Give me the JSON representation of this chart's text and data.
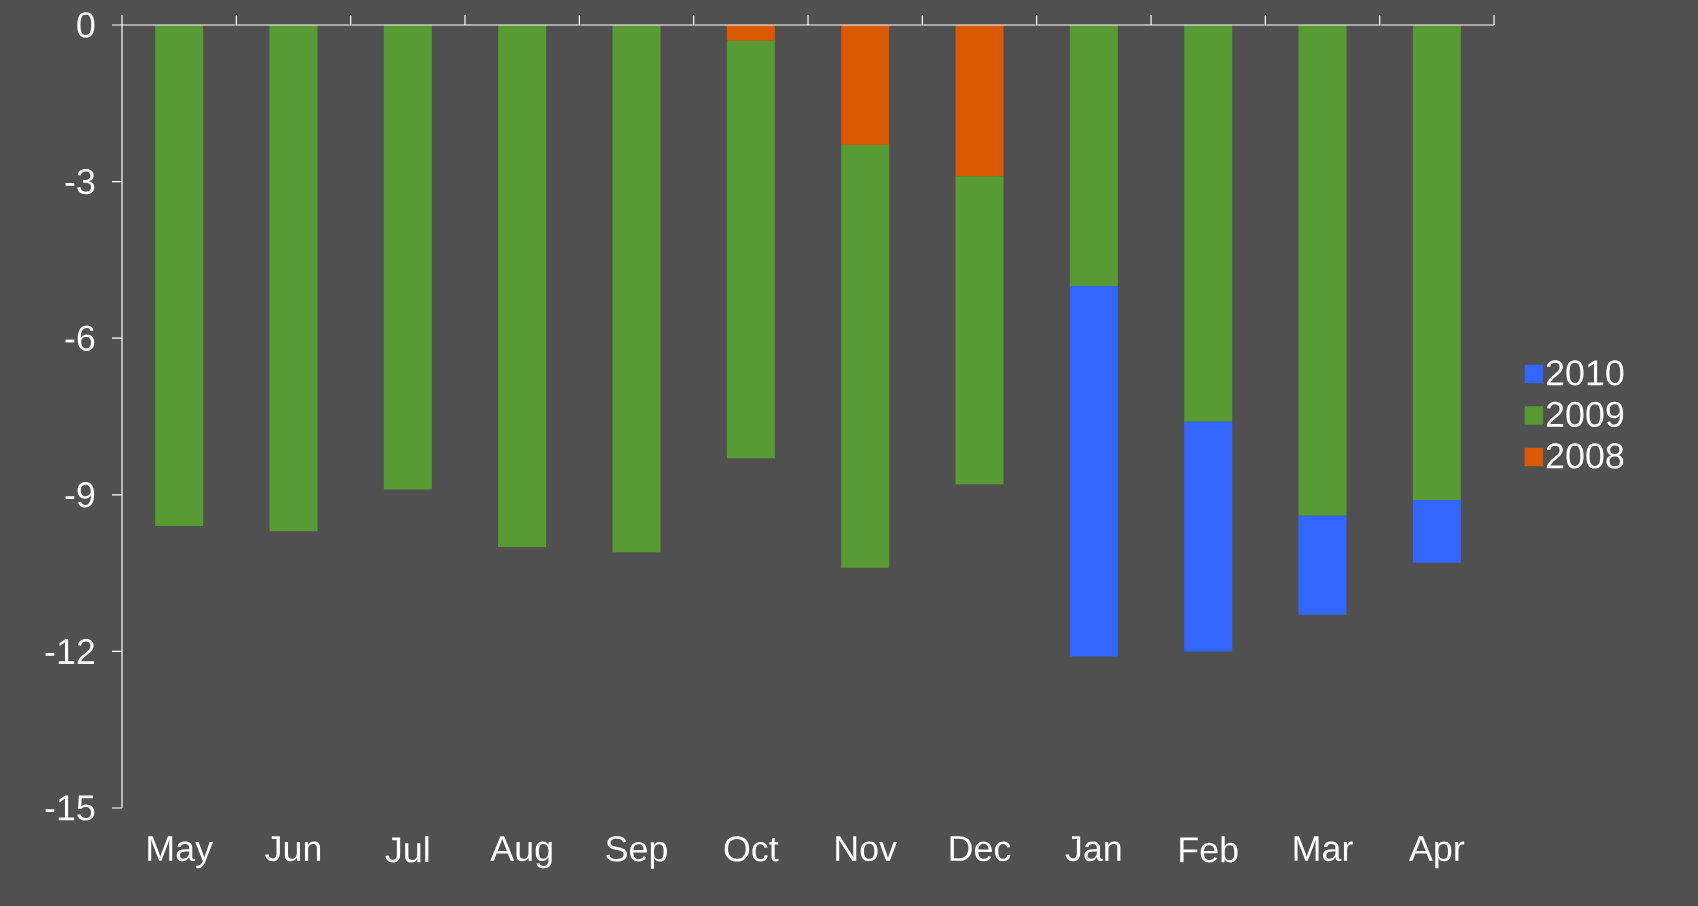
{
  "chart_data": {
    "type": "bar",
    "stacked": true,
    "categories": [
      "May",
      "Jun",
      "Jul",
      "Aug",
      "Sep",
      "Oct",
      "Nov",
      "Dec",
      "Jan",
      "Feb",
      "Mar",
      "Apr"
    ],
    "series": [
      {
        "name": "2008",
        "color": "#d95a00",
        "values": [
          null,
          null,
          null,
          null,
          null,
          -0.3,
          -2.3,
          -2.9,
          null,
          null,
          null,
          null
        ]
      },
      {
        "name": "2009",
        "color": "#589a33",
        "values": [
          -9.6,
          -9.7,
          -8.9,
          -10.0,
          -10.1,
          -8.0,
          -8.1,
          -5.9,
          -5.0,
          -7.6,
          -9.4,
          -9.1
        ]
      },
      {
        "name": "2010",
        "color": "#3366ff",
        "values": [
          null,
          null,
          null,
          null,
          null,
          null,
          null,
          null,
          -7.1,
          -4.4,
          -1.9,
          -1.2
        ]
      }
    ],
    "ylim": [
      -15,
      0
    ],
    "yticks": [
      -15,
      -12,
      -9,
      -6,
      -3,
      0
    ],
    "grid": false,
    "legend": "right"
  }
}
